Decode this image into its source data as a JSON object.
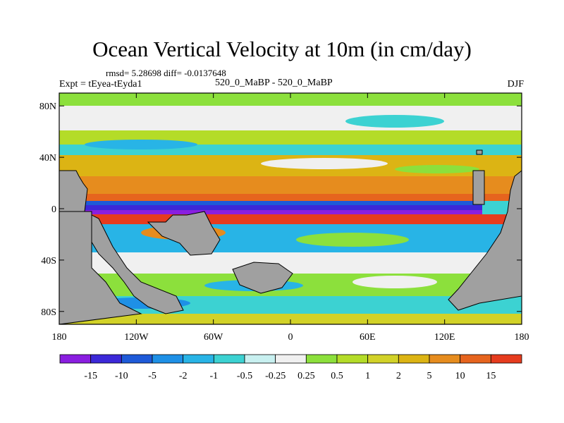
{
  "title": "Ocean Vertical Velocity at 10m (in cm/day)",
  "stats": "rmsd= 5.28698  diff= -0.0137648",
  "experiment": "Expt = tEyea-tEyda1",
  "case": "520_0_MaBP - 520_0_MaBP",
  "season": "DJF",
  "axes": {
    "lat_ticks": [
      {
        "value": 80,
        "label": "80N"
      },
      {
        "value": 40,
        "label": "40N"
      },
      {
        "value": 0,
        "label": "0"
      },
      {
        "value": -40,
        "label": "40S"
      },
      {
        "value": -80,
        "label": "80S"
      }
    ],
    "lon_ticks": [
      {
        "value": -180,
        "label": "180"
      },
      {
        "value": -120,
        "label": "120W"
      },
      {
        "value": -60,
        "label": "60W"
      },
      {
        "value": 0,
        "label": "0"
      },
      {
        "value": 60,
        "label": "60E"
      },
      {
        "value": 120,
        "label": "120E"
      },
      {
        "value": 180,
        "label": "180"
      }
    ],
    "lat_range": [
      -90,
      90
    ],
    "lon_range": [
      -180,
      180
    ]
  },
  "colorbar": {
    "colors": [
      "#8a1ee0",
      "#3c28d8",
      "#1e5ad8",
      "#1e90e6",
      "#28b4e6",
      "#3cd2d2",
      "#c8f0f0",
      "#f0f0f0",
      "#8ce03c",
      "#b4dc28",
      "#d2d228",
      "#dcb414",
      "#e68c1e",
      "#e6641e",
      "#e63c1e"
    ],
    "labels": [
      "-15",
      "-10",
      "-5",
      "-2",
      "-1",
      "-0.5",
      "-0.25",
      "0.25",
      "0.5",
      "1",
      "2",
      "5",
      "10",
      "15"
    ]
  },
  "land_color": "#a0a0a0"
}
